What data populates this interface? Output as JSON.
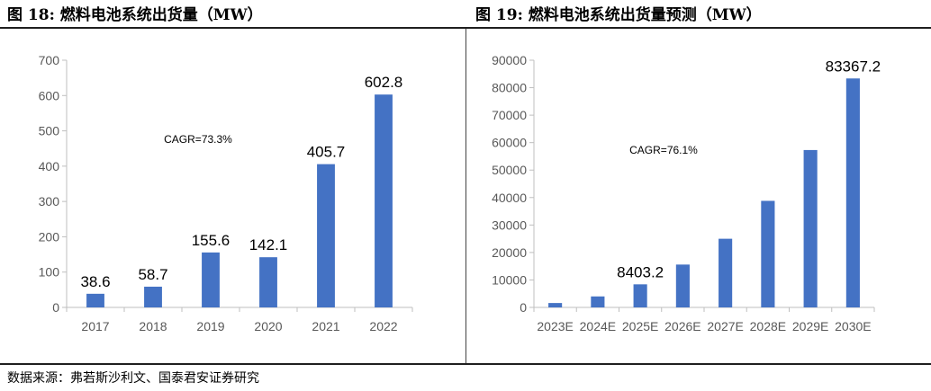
{
  "page": {
    "left_title": "图 18:  燃料电池系统出货量（MW）",
    "right_title": "图 19:  燃料电池系统出货量预测（MW）",
    "source": "数据来源：弗若斯沙利文、国泰君安证券研究"
  },
  "colors": {
    "bar": "#4472C4",
    "axis": "#bfbfbf",
    "tick": "#595959"
  },
  "chart_data": [
    {
      "type": "bar",
      "title": "图 18:  燃料电池系统出货量（MW）",
      "categories": [
        "2017",
        "2018",
        "2019",
        "2020",
        "2021",
        "2022"
      ],
      "values": [
        38.6,
        58.7,
        155.6,
        142.1,
        405.7,
        602.8
      ],
      "data_labels": [
        "38.6",
        "58.7",
        "155.6",
        "142.1",
        "405.7",
        "602.8"
      ],
      "yticks": [
        "0",
        "100",
        "200",
        "300",
        "400",
        "500",
        "600",
        "700"
      ],
      "ylim": [
        0,
        700
      ],
      "annotation": "CAGR=73.3%",
      "grid": false,
      "legend": "none"
    },
    {
      "type": "bar",
      "title": "图 19:  燃料电池系统出货量预测（MW）",
      "categories": [
        "2023E",
        "2024E",
        "2025E",
        "2026E",
        "2027E",
        "2028E",
        "2029E",
        "2030E"
      ],
      "values": [
        1600,
        4000,
        8403.2,
        15600,
        25000,
        38800,
        57300,
        83367.2
      ],
      "data_labels": [
        "",
        "",
        "8403.2",
        "",
        "",
        "",
        "",
        "83367.2"
      ],
      "yticks": [
        "0",
        "10000",
        "20000",
        "30000",
        "40000",
        "50000",
        "60000",
        "70000",
        "80000",
        "90000"
      ],
      "ylim": [
        0,
        90000
      ],
      "annotation": "CAGR=76.1%",
      "grid": false,
      "legend": "none"
    }
  ]
}
